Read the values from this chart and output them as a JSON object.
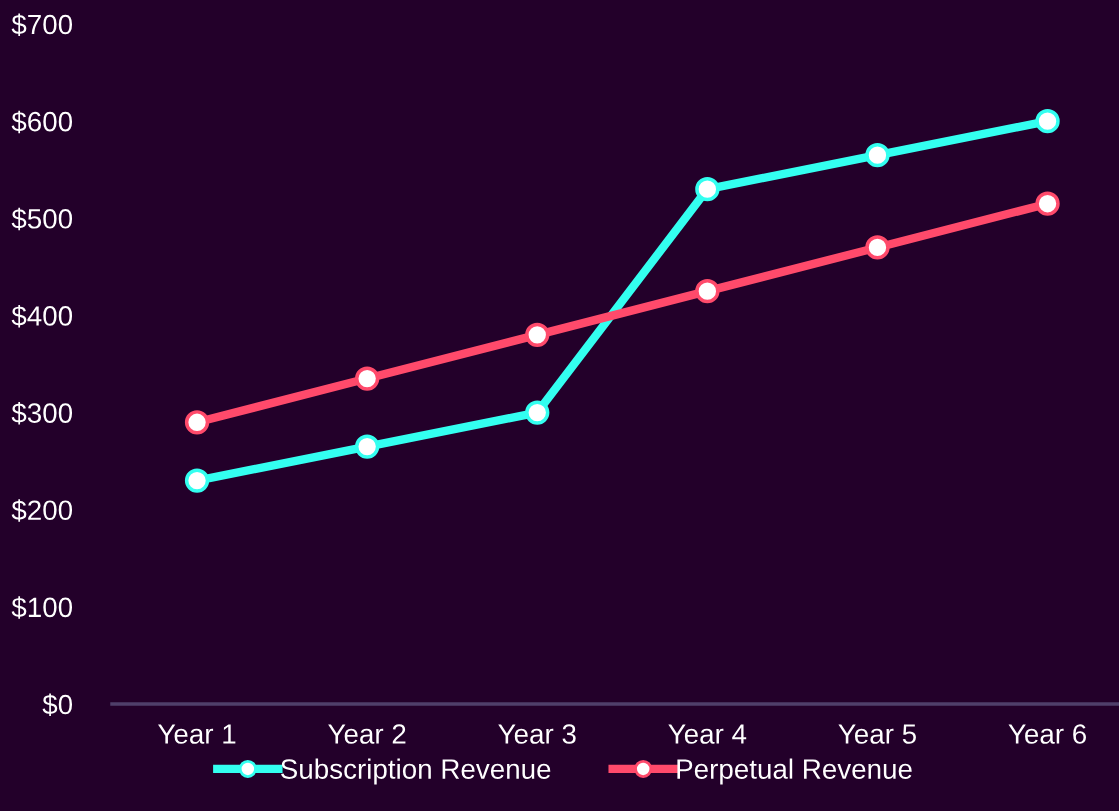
{
  "chart_data": {
    "type": "line",
    "categories": [
      "Year 1",
      "Year 2",
      "Year 3",
      "Year 4",
      "Year 5",
      "Year 6"
    ],
    "series": [
      {
        "name": "Subscription Revenue",
        "color": "#33fff0",
        "values": [
          230,
          265,
          300,
          530,
          565,
          600
        ]
      },
      {
        "name": "Perpetual Revenue",
        "color": "#ff4a6b",
        "values": [
          290,
          335,
          380,
          425,
          470,
          515
        ]
      }
    ],
    "ylim": [
      0,
      700
    ],
    "yticks": [
      {
        "value": 0,
        "label": "$0"
      },
      {
        "value": 100,
        "label": "$100"
      },
      {
        "value": 200,
        "label": "$200"
      },
      {
        "value": 300,
        "label": "$300"
      },
      {
        "value": 400,
        "label": "$400"
      },
      {
        "value": 500,
        "label": "$500"
      },
      {
        "value": 600,
        "label": "$600"
      },
      {
        "value": 700,
        "label": "$700"
      }
    ],
    "grid": false,
    "legend": "bottom",
    "marker": "circle",
    "line_style": "solid"
  }
}
